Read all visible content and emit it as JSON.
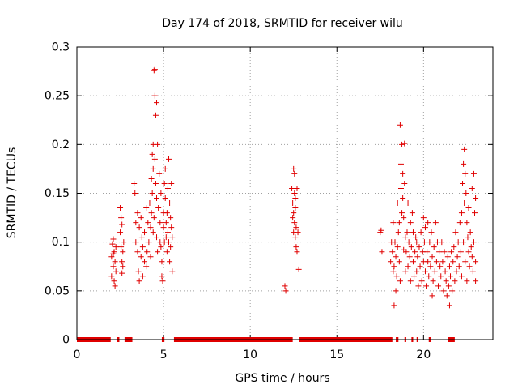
{
  "chart_data": {
    "type": "scatter",
    "title": "Day 174 of 2018, SRMTID for receiver wilu",
    "xlabel": "GPS time / hours",
    "ylabel": "SRMTID / TECUs",
    "xlim": [
      0,
      24
    ],
    "ylim": [
      0,
      0.3
    ],
    "xticks": [
      0,
      5,
      10,
      15,
      20
    ],
    "yticks": [
      0,
      0.05,
      0.1,
      0.15,
      0.2,
      0.25,
      0.3
    ],
    "ytick_labels": [
      "0",
      "0.05",
      "0.1",
      "0.15",
      "0.2",
      "0.25",
      "0.3"
    ],
    "grid": true,
    "marker": "+",
    "series_color": "#e00000",
    "series": [
      {
        "name": "SRMTID",
        "points": [
          [
            2.0,
            0.085
          ],
          [
            2.05,
            0.098
          ],
          [
            2.1,
            0.075
          ],
          [
            2.1,
            0.103
          ],
          [
            2.15,
            0.06
          ],
          [
            2.15,
            0.09
          ],
          [
            2.2,
            0.055
          ],
          [
            2.2,
            0.08
          ],
          [
            2.25,
            0.095
          ],
          [
            2.25,
            0.07
          ],
          [
            2.0,
            0.065
          ],
          [
            2.1,
            0.088
          ],
          [
            2.5,
            0.135
          ],
          [
            2.55,
            0.125
          ],
          [
            2.55,
            0.095
          ],
          [
            2.6,
            0.118
          ],
          [
            2.6,
            0.08
          ],
          [
            2.65,
            0.09
          ],
          [
            2.65,
            0.075
          ],
          [
            2.7,
            0.1
          ],
          [
            2.5,
            0.11
          ],
          [
            2.6,
            0.068
          ],
          [
            3.3,
            0.16
          ],
          [
            3.35,
            0.15
          ],
          [
            3.4,
            0.12
          ],
          [
            3.4,
            0.1
          ],
          [
            3.5,
            0.13
          ],
          [
            3.5,
            0.09
          ],
          [
            3.55,
            0.07
          ],
          [
            3.6,
            0.06
          ],
          [
            3.6,
            0.115
          ],
          [
            3.7,
            0.085
          ],
          [
            3.7,
            0.125
          ],
          [
            3.75,
            0.105
          ],
          [
            3.8,
            0.095
          ],
          [
            3.8,
            0.065
          ],
          [
            3.9,
            0.08
          ],
          [
            3.9,
            0.11
          ],
          [
            4.0,
            0.075
          ],
          [
            4.0,
            0.135
          ],
          [
            4.05,
            0.09
          ],
          [
            4.1,
            0.12
          ],
          [
            4.15,
            0.1
          ],
          [
            4.2,
            0.14
          ],
          [
            4.25,
            0.115
          ],
          [
            4.25,
            0.085
          ],
          [
            4.3,
            0.165
          ],
          [
            4.3,
            0.13
          ],
          [
            4.35,
            0.19
          ],
          [
            4.35,
            0.15
          ],
          [
            4.4,
            0.2
          ],
          [
            4.4,
            0.175
          ],
          [
            4.4,
            0.11
          ],
          [
            4.45,
            0.276
          ],
          [
            4.45,
            0.125
          ],
          [
            4.5,
            0.25
          ],
          [
            4.5,
            0.277
          ],
          [
            4.5,
            0.185
          ],
          [
            4.55,
            0.23
          ],
          [
            4.55,
            0.16
          ],
          [
            4.6,
            0.243
          ],
          [
            4.6,
            0.145
          ],
          [
            4.6,
            0.105
          ],
          [
            4.65,
            0.2
          ],
          [
            4.65,
            0.09
          ],
          [
            4.7,
            0.135
          ],
          [
            4.75,
            0.17
          ],
          [
            4.8,
            0.12
          ],
          [
            4.8,
            0.1
          ],
          [
            4.85,
            0.095
          ],
          [
            4.85,
            0.15
          ],
          [
            4.9,
            0.08
          ],
          [
            4.9,
            0.065
          ],
          [
            4.95,
            0.06
          ],
          [
            5.0,
            0.115
          ],
          [
            5.0,
            0.13
          ],
          [
            5.05,
            0.16
          ],
          [
            5.05,
            0.1
          ],
          [
            5.1,
            0.175
          ],
          [
            5.1,
            0.145
          ],
          [
            5.15,
            0.12
          ],
          [
            5.15,
            0.105
          ],
          [
            5.2,
            0.13
          ],
          [
            5.2,
            0.09
          ],
          [
            5.25,
            0.155
          ],
          [
            5.25,
            0.11
          ],
          [
            5.3,
            0.185
          ],
          [
            5.3,
            0.1
          ],
          [
            5.35,
            0.14
          ],
          [
            5.35,
            0.08
          ],
          [
            5.4,
            0.125
          ],
          [
            5.4,
            0.095
          ],
          [
            5.45,
            0.16
          ],
          [
            5.45,
            0.115
          ],
          [
            5.5,
            0.07
          ],
          [
            5.5,
            0.105
          ],
          [
            12.0,
            0.055
          ],
          [
            12.05,
            0.05
          ],
          [
            12.4,
            0.155
          ],
          [
            12.45,
            0.14
          ],
          [
            12.45,
            0.125
          ],
          [
            12.5,
            0.175
          ],
          [
            12.5,
            0.13
          ],
          [
            12.5,
            0.11
          ],
          [
            12.55,
            0.17
          ],
          [
            12.55,
            0.15
          ],
          [
            12.55,
            0.12
          ],
          [
            12.6,
            0.145
          ],
          [
            12.6,
            0.105
          ],
          [
            12.6,
            0.135
          ],
          [
            12.65,
            0.115
          ],
          [
            12.65,
            0.095
          ],
          [
            12.7,
            0.09
          ],
          [
            12.7,
            0.155
          ],
          [
            12.75,
            0.11
          ],
          [
            12.8,
            0.072
          ],
          [
            17.5,
            0.11
          ],
          [
            17.55,
            0.112
          ],
          [
            17.6,
            0.09
          ],
          [
            18.1,
            0.08
          ],
          [
            18.15,
            0.1
          ],
          [
            18.2,
            0.09
          ],
          [
            18.25,
            0.07
          ],
          [
            18.25,
            0.12
          ],
          [
            18.3,
            0.035
          ],
          [
            18.3,
            0.075
          ],
          [
            18.35,
            0.1
          ],
          [
            18.4,
            0.085
          ],
          [
            18.4,
            0.05
          ],
          [
            18.45,
            0.065
          ],
          [
            18.5,
            0.14
          ],
          [
            18.5,
            0.095
          ],
          [
            18.55,
            0.11
          ],
          [
            18.6,
            0.12
          ],
          [
            18.6,
            0.08
          ],
          [
            18.65,
            0.22
          ],
          [
            18.65,
            0.06
          ],
          [
            18.7,
            0.18
          ],
          [
            18.7,
            0.155
          ],
          [
            18.75,
            0.2
          ],
          [
            18.75,
            0.13
          ],
          [
            18.8,
            0.145
          ],
          [
            18.8,
            0.17
          ],
          [
            18.85,
            0.125
          ],
          [
            18.85,
            0.092
          ],
          [
            18.9,
            0.201
          ],
          [
            18.9,
            0.16
          ],
          [
            18.95,
            0.105
          ],
          [
            18.95,
            0.07
          ],
          [
            19.0,
            0.09
          ],
          [
            19.05,
            0.11
          ],
          [
            19.1,
            0.14
          ],
          [
            19.1,
            0.075
          ],
          [
            19.15,
            0.1
          ],
          [
            19.2,
            0.085
          ],
          [
            19.25,
            0.12
          ],
          [
            19.25,
            0.06
          ],
          [
            19.3,
            0.095
          ],
          [
            19.35,
            0.13
          ],
          [
            19.4,
            0.08
          ],
          [
            19.4,
            0.11
          ],
          [
            19.45,
            0.065
          ],
          [
            19.5,
            0.09
          ],
          [
            19.55,
            0.105
          ],
          [
            19.6,
            0.1
          ],
          [
            19.6,
            0.07
          ],
          [
            19.65,
            0.085
          ],
          [
            19.7,
            0.055
          ],
          [
            19.75,
            0.095
          ],
          [
            19.8,
            0.075
          ],
          [
            19.85,
            0.11
          ],
          [
            19.9,
            0.06
          ],
          [
            19.95,
            0.09
          ],
          [
            20.0,
            0.125
          ],
          [
            20.0,
            0.08
          ],
          [
            20.05,
            0.1
          ],
          [
            20.1,
            0.07
          ],
          [
            20.1,
            0.115
          ],
          [
            20.15,
            0.055
          ],
          [
            20.2,
            0.09
          ],
          [
            20.25,
            0.12
          ],
          [
            20.25,
            0.08
          ],
          [
            20.3,
            0.065
          ],
          [
            20.35,
            0.1
          ],
          [
            20.4,
            0.075
          ],
          [
            20.45,
            0.11
          ],
          [
            20.5,
            0.045
          ],
          [
            20.5,
            0.085
          ],
          [
            20.55,
            0.06
          ],
          [
            20.6,
            0.095
          ],
          [
            20.65,
            0.07
          ],
          [
            20.7,
            0.12
          ],
          [
            20.75,
            0.08
          ],
          [
            20.8,
            0.1
          ],
          [
            20.85,
            0.055
          ],
          [
            20.9,
            0.09
          ],
          [
            20.95,
            0.075
          ],
          [
            21.0,
            0.065
          ],
          [
            21.05,
            0.1
          ],
          [
            21.1,
            0.08
          ],
          [
            21.15,
            0.05
          ],
          [
            21.2,
            0.09
          ],
          [
            21.25,
            0.07
          ],
          [
            21.3,
            0.06
          ],
          [
            21.35,
            0.045
          ],
          [
            21.4,
            0.085
          ],
          [
            21.45,
            0.055
          ],
          [
            21.5,
            0.075
          ],
          [
            21.5,
            0.035
          ],
          [
            21.55,
            0.065
          ],
          [
            21.6,
            0.09
          ],
          [
            21.65,
            0.05
          ],
          [
            21.7,
            0.08
          ],
          [
            21.75,
            0.095
          ],
          [
            21.8,
            0.06
          ],
          [
            21.85,
            0.11
          ],
          [
            21.9,
            0.07
          ],
          [
            21.95,
            0.085
          ],
          [
            22.0,
            0.1
          ],
          [
            22.05,
            0.075
          ],
          [
            22.1,
            0.12
          ],
          [
            22.15,
            0.09
          ],
          [
            22.2,
            0.13
          ],
          [
            22.2,
            0.065
          ],
          [
            22.25,
            0.16
          ],
          [
            22.3,
            0.18
          ],
          [
            22.3,
            0.1
          ],
          [
            22.35,
            0.195
          ],
          [
            22.35,
            0.14
          ],
          [
            22.4,
            0.17
          ],
          [
            22.4,
            0.08
          ],
          [
            22.45,
            0.15
          ],
          [
            22.5,
            0.12
          ],
          [
            22.5,
            0.06
          ],
          [
            22.55,
            0.105
          ],
          [
            22.6,
            0.09
          ],
          [
            22.6,
            0.135
          ],
          [
            22.65,
            0.075
          ],
          [
            22.7,
            0.11
          ],
          [
            22.75,
            0.095
          ],
          [
            22.8,
            0.085
          ],
          [
            22.8,
            0.155
          ],
          [
            22.85,
            0.07
          ],
          [
            22.9,
            0.17
          ],
          [
            22.9,
            0.1
          ],
          [
            22.95,
            0.13
          ],
          [
            23.0,
            0.145
          ],
          [
            23.0,
            0.08
          ],
          [
            23.0,
            0.06
          ]
        ]
      }
    ],
    "zero_segments": [
      [
        0.0,
        1.95
      ],
      [
        2.3,
        2.45
      ],
      [
        2.75,
        3.2
      ],
      [
        4.9,
        5.05
      ],
      [
        5.6,
        12.45
      ],
      [
        12.8,
        18.2
      ],
      [
        18.4,
        18.55
      ],
      [
        18.9,
        19.0
      ],
      [
        19.3,
        19.4
      ],
      [
        19.6,
        19.7
      ],
      [
        20.3,
        20.45
      ],
      [
        21.4,
        21.8
      ]
    ]
  }
}
